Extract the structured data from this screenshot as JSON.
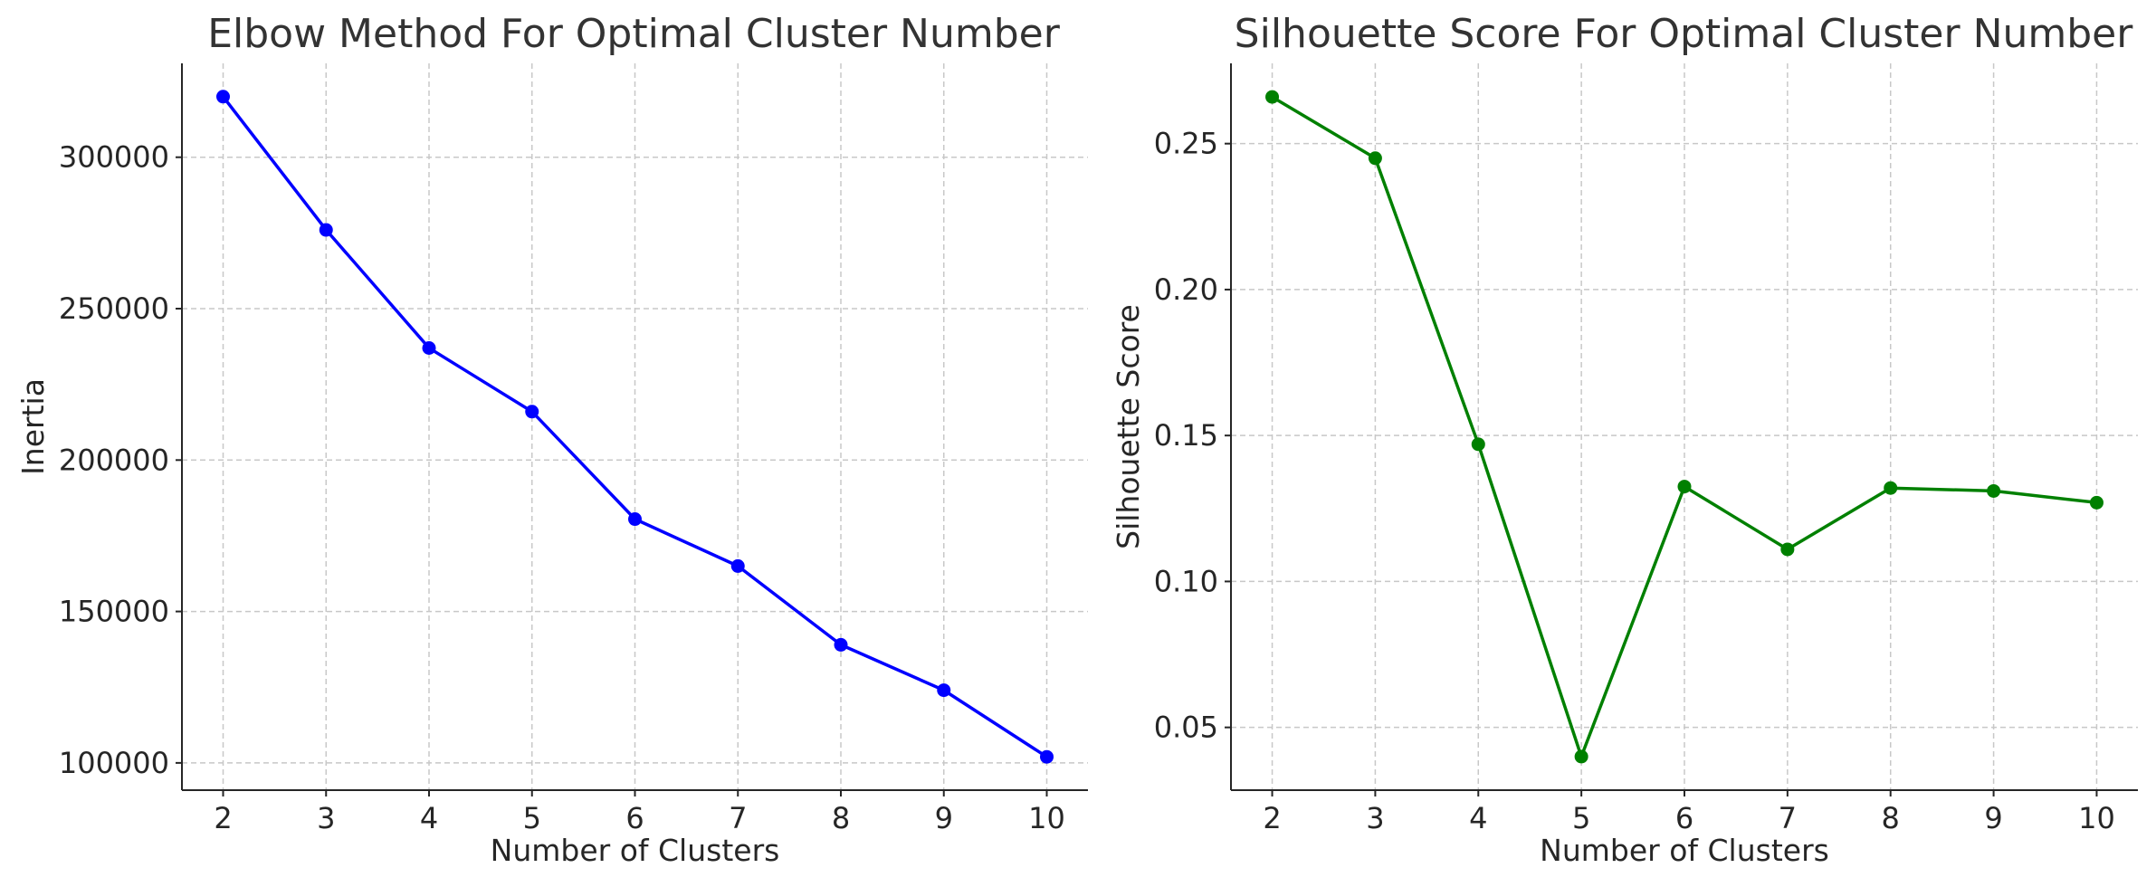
{
  "chart_data": [
    {
      "type": "line",
      "title": "Elbow Method For Optimal Cluster Number",
      "xlabel": "Number of Clusters",
      "ylabel": "Inertia",
      "x": [
        2,
        3,
        4,
        5,
        6,
        7,
        8,
        9,
        10
      ],
      "series": [
        {
          "values": [
            320000,
            276000,
            237000,
            216000,
            180500,
            165000,
            139000,
            124000,
            102000
          ],
          "color": "#0000ff",
          "marker": "circle"
        }
      ],
      "xticks": [
        "2",
        "3",
        "4",
        "5",
        "6",
        "7",
        "8",
        "9",
        "10"
      ],
      "yticks": [
        "100000",
        "150000",
        "200000",
        "250000",
        "300000"
      ],
      "ytick_values": [
        100000,
        150000,
        200000,
        250000,
        300000
      ],
      "xlim": [
        1.6,
        10.4
      ],
      "ylim": [
        91000,
        331000
      ],
      "grid": true
    },
    {
      "type": "line",
      "title": "Silhouette Score For Optimal Cluster Number",
      "xlabel": "Number of Clusters",
      "ylabel": "Silhouette Score",
      "x": [
        2,
        3,
        4,
        5,
        6,
        7,
        8,
        9,
        10
      ],
      "series": [
        {
          "values": [
            0.266,
            0.245,
            0.147,
            0.04,
            0.1325,
            0.111,
            0.132,
            0.131,
            0.127
          ],
          "color": "#008000",
          "marker": "circle"
        }
      ],
      "xticks": [
        "2",
        "3",
        "4",
        "5",
        "6",
        "7",
        "8",
        "9",
        "10"
      ],
      "yticks": [
        "0.05",
        "0.10",
        "0.15",
        "0.20",
        "0.25"
      ],
      "ytick_values": [
        0.05,
        0.1,
        0.15,
        0.2,
        0.25
      ],
      "xlim": [
        1.6,
        10.4
      ],
      "ylim": [
        0.0285,
        0.2775
      ],
      "grid": true
    }
  ]
}
